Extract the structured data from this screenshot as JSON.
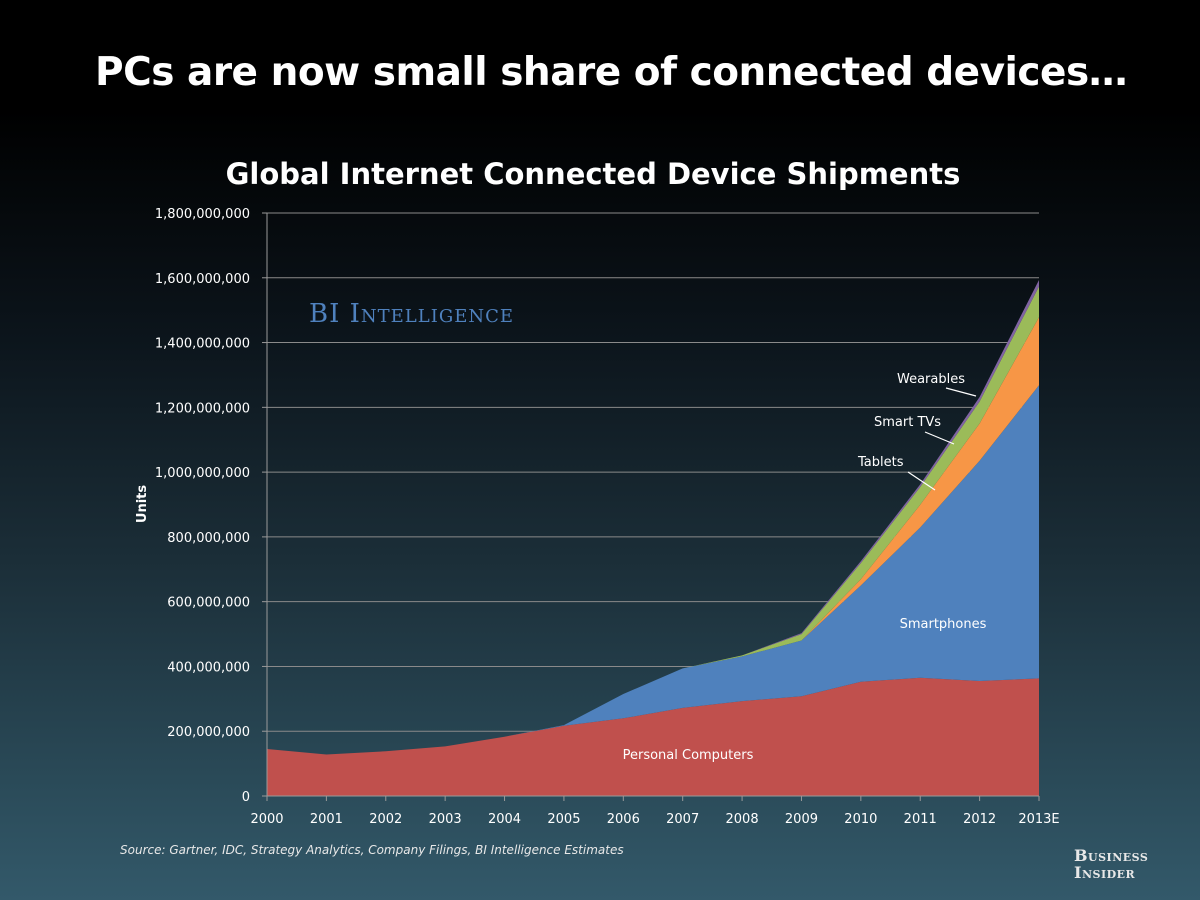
{
  "slide": {
    "title": "PCs are now small share of connected devices…",
    "source": "Source: Gartner, IDC, Strategy Analytics, Company Filings, BI Intelligence Estimates",
    "logo_line1": "Business",
    "logo_line2": "Insider",
    "watermark": "BI Intelligence"
  },
  "colors": {
    "personal_computers": "#c0504d",
    "smartphones": "#4f81bd",
    "tablets": "#f79646",
    "smart_tvs": "#9bbb59",
    "wearables": "#8064a2",
    "gridline": "#8a8a8a",
    "watermark": "#4f81bd"
  },
  "chart_data": {
    "type": "area",
    "stacked": true,
    "title": "Global Internet Connected Device Shipments",
    "xlabel": "",
    "ylabel": "Units",
    "ylim": [
      0,
      1800000000
    ],
    "y_ticks": [
      0,
      200000000,
      400000000,
      600000000,
      800000000,
      1000000000,
      1200000000,
      1400000000,
      1600000000,
      1800000000
    ],
    "y_tick_labels": [
      "0",
      "200,000,000",
      "400,000,000",
      "600,000,000",
      "800,000,000",
      "1,000,000,000",
      "1,200,000,000",
      "1,400,000,000",
      "1,600,000,000",
      "1,800,000,000"
    ],
    "grid": true,
    "categories": [
      "2000",
      "2001",
      "2002",
      "2003",
      "2004",
      "2005",
      "2006",
      "2007",
      "2008",
      "2009",
      "2010",
      "2011",
      "2012",
      "2013E"
    ],
    "series": [
      {
        "name": "Personal Computers",
        "color_key": "personal_computers",
        "values": [
          145000000,
          128000000,
          138000000,
          153000000,
          183000000,
          217000000,
          240000000,
          272000000,
          293000000,
          308000000,
          353000000,
          365000000,
          355000000,
          363000000
        ]
      },
      {
        "name": "Smartphones",
        "color_key": "smartphones",
        "values": [
          0,
          0,
          0,
          0,
          0,
          2000000,
          75000000,
          122000000,
          138000000,
          172000000,
          297000000,
          464000000,
          680000000,
          905000000
        ]
      },
      {
        "name": "Tablets",
        "color_key": "tablets",
        "values": [
          0,
          0,
          0,
          0,
          0,
          0,
          0,
          0,
          0,
          0,
          19000000,
          70000000,
          115000000,
          210000000
        ]
      },
      {
        "name": "Smart TVs",
        "color_key": "smart_tvs",
        "values": [
          0,
          0,
          0,
          0,
          0,
          0,
          0,
          0,
          3000000,
          20000000,
          50000000,
          55000000,
          68000000,
          95000000
        ]
      },
      {
        "name": "Wearables",
        "color_key": "wearables",
        "values": [
          0,
          0,
          0,
          0,
          0,
          0,
          0,
          0,
          0,
          3000000,
          6000000,
          8000000,
          14000000,
          20000000
        ]
      }
    ],
    "series_labels": [
      {
        "text": "Personal Computers",
        "series": "Personal Computers"
      },
      {
        "text": "Smartphones",
        "series": "Smartphones"
      },
      {
        "text": "Tablets",
        "series": "Tablets"
      },
      {
        "text": "Smart TVs",
        "series": "Smart TVs"
      },
      {
        "text": "Wearables",
        "series": "Wearables"
      }
    ]
  }
}
